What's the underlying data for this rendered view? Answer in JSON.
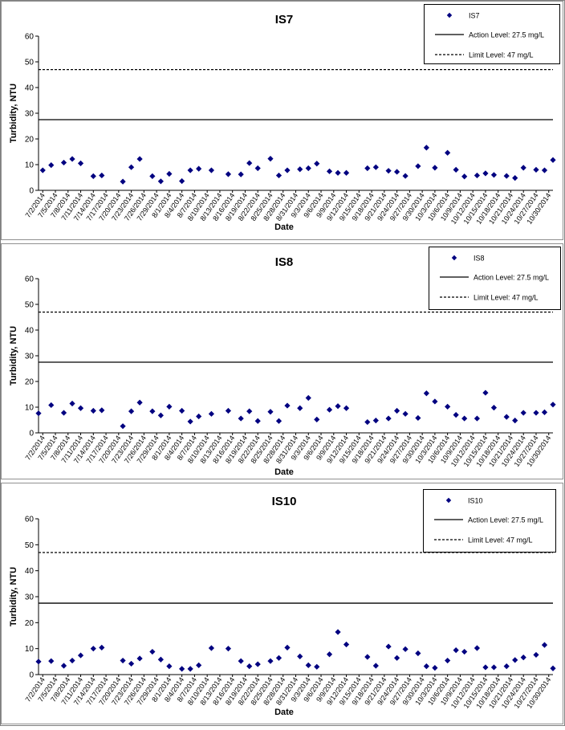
{
  "chart_data": [
    {
      "type": "scatter",
      "title": "IS7",
      "xlabel": "Date",
      "ylabel": "Turbidity, NTU",
      "ylim": [
        0,
        60
      ],
      "y_ticks": [
        0,
        10,
        20,
        30,
        40,
        50,
        60
      ],
      "x_range": [
        "7/1/2014",
        "10/31/2014"
      ],
      "x_tick_labels": [
        "7/2/2014",
        "7/5/2014",
        "7/8/2014",
        "7/11/2014",
        "7/14/2014",
        "7/17/2014",
        "7/20/2014",
        "7/23/2014",
        "7/26/2014",
        "7/29/2014",
        "8/1/2014",
        "8/4/2014",
        "8/7/2014",
        "8/10/2014",
        "8/13/2014",
        "8/16/2014",
        "8/19/2014",
        "8/22/2014",
        "8/25/2014",
        "8/28/2014",
        "8/31/2014",
        "9/3/2014",
        "9/6/2014",
        "9/9/2014",
        "9/12/2014",
        "9/15/2014",
        "9/18/2014",
        "9/21/2014",
        "9/24/2014",
        "9/27/2014",
        "9/30/2014",
        "10/3/2014",
        "10/6/2014",
        "10/9/2014",
        "10/12/2014",
        "10/15/2014",
        "10/18/2014",
        "10/21/2014",
        "10/24/2014",
        "10/27/2014",
        "10/30/2014"
      ],
      "grid": false,
      "legend_position": "top-right",
      "series": [
        {
          "name": "IS7",
          "marker": "diamond",
          "color": "#000080",
          "points": [
            {
              "x": "7/2/2014",
              "y": 7.8
            },
            {
              "x": "7/4/2014",
              "y": 9.8
            },
            {
              "x": "7/7/2014",
              "y": 10.8
            },
            {
              "x": "7/9/2014",
              "y": 12.2
            },
            {
              "x": "7/11/2014",
              "y": 10.5
            },
            {
              "x": "7/14/2014",
              "y": 5.5
            },
            {
              "x": "7/16/2014",
              "y": 5.8
            },
            {
              "x": "7/21/2014",
              "y": 3.4
            },
            {
              "x": "7/23/2014",
              "y": 9.0
            },
            {
              "x": "7/25/2014",
              "y": 12.2
            },
            {
              "x": "7/28/2014",
              "y": 5.5
            },
            {
              "x": "7/30/2014",
              "y": 3.5
            },
            {
              "x": "8/1/2014",
              "y": 6.4
            },
            {
              "x": "8/4/2014",
              "y": 3.6
            },
            {
              "x": "8/6/2014",
              "y": 7.8
            },
            {
              "x": "8/8/2014",
              "y": 8.4
            },
            {
              "x": "8/11/2014",
              "y": 7.8
            },
            {
              "x": "8/15/2014",
              "y": 6.3
            },
            {
              "x": "8/18/2014",
              "y": 6.2
            },
            {
              "x": "8/20/2014",
              "y": 10.6
            },
            {
              "x": "8/22/2014",
              "y": 8.6
            },
            {
              "x": "8/25/2014",
              "y": 12.3
            },
            {
              "x": "8/27/2014",
              "y": 5.8
            },
            {
              "x": "8/29/2014",
              "y": 7.8
            },
            {
              "x": "9/1/2014",
              "y": 8.2
            },
            {
              "x": "9/3/2014",
              "y": 8.6
            },
            {
              "x": "9/5/2014",
              "y": 10.4
            },
            {
              "x": "9/8/2014",
              "y": 7.4
            },
            {
              "x": "9/10/2014",
              "y": 6.8
            },
            {
              "x": "9/12/2014",
              "y": 6.8
            },
            {
              "x": "9/17/2014",
              "y": 8.6
            },
            {
              "x": "9/19/2014",
              "y": 9.0
            },
            {
              "x": "9/22/2014",
              "y": 7.6
            },
            {
              "x": "9/24/2014",
              "y": 7.2
            },
            {
              "x": "9/26/2014",
              "y": 5.6
            },
            {
              "x": "9/29/2014",
              "y": 9.4
            },
            {
              "x": "10/1/2014",
              "y": 16.6
            },
            {
              "x": "10/3/2014",
              "y": 8.8
            },
            {
              "x": "10/6/2014",
              "y": 14.6
            },
            {
              "x": "10/8/2014",
              "y": 8.0
            },
            {
              "x": "10/10/2014",
              "y": 5.4
            },
            {
              "x": "10/13/2014",
              "y": 5.8
            },
            {
              "x": "10/15/2014",
              "y": 6.6
            },
            {
              "x": "10/17/2014",
              "y": 6.0
            },
            {
              "x": "10/20/2014",
              "y": 5.6
            },
            {
              "x": "10/22/2014",
              "y": 4.8
            },
            {
              "x": "10/24/2014",
              "y": 8.8
            },
            {
              "x": "10/27/2014",
              "y": 8.0
            },
            {
              "x": "10/29/2014",
              "y": 7.8
            },
            {
              "x": "10/31/2014",
              "y": 11.8
            }
          ]
        },
        {
          "name": "Action Level: 27.5 mg/L",
          "type": "hline",
          "y": 27.5,
          "line_style": "solid",
          "color": "#000000"
        },
        {
          "name": "Limit Level: 47 mg/L",
          "type": "hline",
          "y": 47,
          "line_style": "dashed",
          "color": "#000000"
        }
      ]
    },
    {
      "type": "scatter",
      "title": "IS8",
      "xlabel": "Date",
      "ylabel": "Turbidity, NTU",
      "ylim": [
        0,
        60
      ],
      "y_ticks": [
        0,
        10,
        20,
        30,
        40,
        50,
        60
      ],
      "x_range": [
        "7/1/2014",
        "10/31/2014"
      ],
      "x_tick_labels": [
        "7/2/2014",
        "7/5/2014",
        "7/8/2014",
        "7/11/2014",
        "7/14/2014",
        "7/17/2014",
        "7/20/2014",
        "7/23/2014",
        "7/26/2014",
        "7/29/2014",
        "8/1/2014",
        "8/4/2014",
        "8/7/2014",
        "8/10/2014",
        "8/13/2014",
        "8/16/2014",
        "8/19/2014",
        "8/22/2014",
        "8/25/2014",
        "8/28/2014",
        "8/31/2014",
        "9/3/2014",
        "9/6/2014",
        "9/9/2014",
        "9/12/2014",
        "9/15/2014",
        "9/18/2014",
        "9/21/2014",
        "9/24/2014",
        "9/27/2014",
        "9/30/2014",
        "10/3/2014",
        "10/6/2014",
        "10/9/2014",
        "10/12/2014",
        "10/15/2014",
        "10/18/2014",
        "10/21/2014",
        "10/24/2014",
        "10/27/2014",
        "10/30/2014"
      ],
      "grid": false,
      "legend_position": "top-right",
      "series": [
        {
          "name": "IS8",
          "marker": "diamond",
          "color": "#000080",
          "points": [
            {
              "x": "7/1/2014",
              "y": 7.6
            },
            {
              "x": "7/4/2014",
              "y": 10.8
            },
            {
              "x": "7/7/2014",
              "y": 7.8
            },
            {
              "x": "7/9/2014",
              "y": 11.4
            },
            {
              "x": "7/11/2014",
              "y": 9.6
            },
            {
              "x": "7/14/2014",
              "y": 8.6
            },
            {
              "x": "7/16/2014",
              "y": 8.8
            },
            {
              "x": "7/21/2014",
              "y": 2.6
            },
            {
              "x": "7/23/2014",
              "y": 8.4
            },
            {
              "x": "7/25/2014",
              "y": 11.8
            },
            {
              "x": "7/28/2014",
              "y": 8.4
            },
            {
              "x": "7/30/2014",
              "y": 6.8
            },
            {
              "x": "8/1/2014",
              "y": 10.2
            },
            {
              "x": "8/4/2014",
              "y": 8.6
            },
            {
              "x": "8/6/2014",
              "y": 4.4
            },
            {
              "x": "8/8/2014",
              "y": 6.4
            },
            {
              "x": "8/11/2014",
              "y": 7.4
            },
            {
              "x": "8/15/2014",
              "y": 8.6
            },
            {
              "x": "8/18/2014",
              "y": 5.6
            },
            {
              "x": "8/20/2014",
              "y": 8.4
            },
            {
              "x": "8/22/2014",
              "y": 4.6
            },
            {
              "x": "8/25/2014",
              "y": 8.2
            },
            {
              "x": "8/27/2014",
              "y": 4.6
            },
            {
              "x": "8/29/2014",
              "y": 10.6
            },
            {
              "x": "9/1/2014",
              "y": 9.6
            },
            {
              "x": "9/3/2014",
              "y": 13.6
            },
            {
              "x": "9/5/2014",
              "y": 5.2
            },
            {
              "x": "9/8/2014",
              "y": 9.0
            },
            {
              "x": "9/10/2014",
              "y": 10.4
            },
            {
              "x": "9/12/2014",
              "y": 9.6
            },
            {
              "x": "9/17/2014",
              "y": 4.2
            },
            {
              "x": "9/19/2014",
              "y": 4.8
            },
            {
              "x": "9/22/2014",
              "y": 5.6
            },
            {
              "x": "9/24/2014",
              "y": 8.6
            },
            {
              "x": "9/26/2014",
              "y": 7.4
            },
            {
              "x": "9/29/2014",
              "y": 5.8
            },
            {
              "x": "10/1/2014",
              "y": 15.4
            },
            {
              "x": "10/3/2014",
              "y": 12.2
            },
            {
              "x": "10/6/2014",
              "y": 10.2
            },
            {
              "x": "10/8/2014",
              "y": 7.0
            },
            {
              "x": "10/10/2014",
              "y": 5.6
            },
            {
              "x": "10/13/2014",
              "y": 5.6
            },
            {
              "x": "10/15/2014",
              "y": 15.6
            },
            {
              "x": "10/17/2014",
              "y": 9.8
            },
            {
              "x": "10/20/2014",
              "y": 6.2
            },
            {
              "x": "10/22/2014",
              "y": 4.8
            },
            {
              "x": "10/24/2014",
              "y": 7.8
            },
            {
              "x": "10/27/2014",
              "y": 7.8
            },
            {
              "x": "10/29/2014",
              "y": 8.0
            },
            {
              "x": "10/31/2014",
              "y": 11.0
            }
          ]
        },
        {
          "name": "Action Level: 27.5 mg/L",
          "type": "hline",
          "y": 27.5,
          "line_style": "solid",
          "color": "#000000"
        },
        {
          "name": "Limit Level: 47 mg/L",
          "type": "hline",
          "y": 47,
          "line_style": "dashed",
          "color": "#000000"
        }
      ]
    },
    {
      "type": "scatter",
      "title": "IS10",
      "xlabel": "Date",
      "ylabel": "Turbidity, NTU",
      "ylim": [
        0,
        60
      ],
      "y_ticks": [
        0,
        10,
        20,
        30,
        40,
        50,
        60
      ],
      "x_range": [
        "7/1/2014",
        "10/31/2014"
      ],
      "x_tick_labels": [
        "7/2/2014",
        "7/5/2014",
        "7/8/2014",
        "7/11/2014",
        "7/14/2014",
        "7/17/2014",
        "7/20/2014",
        "7/23/2014",
        "7/26/2014",
        "7/29/2014",
        "8/1/2014",
        "8/4/2014",
        "8/7/2014",
        "8/10/2014",
        "8/13/2014",
        "8/16/2014",
        "8/19/2014",
        "8/22/2014",
        "8/25/2014",
        "8/28/2014",
        "8/31/2014",
        "9/3/2014",
        "9/6/2014",
        "9/9/2014",
        "9/12/2014",
        "9/15/2014",
        "9/18/2014",
        "9/21/2014",
        "9/24/2014",
        "9/27/2014",
        "9/30/2014",
        "10/3/2014",
        "10/6/2014",
        "10/9/2014",
        "10/12/2014",
        "10/15/2014",
        "10/18/2014",
        "10/21/2014",
        "10/24/2014",
        "10/27/2014",
        "10/30/2014"
      ],
      "grid": false,
      "legend_position": "top-right",
      "series": [
        {
          "name": "IS10",
          "marker": "diamond",
          "color": "#000080",
          "points": [
            {
              "x": "7/1/2014",
              "y": 5.0
            },
            {
              "x": "7/4/2014",
              "y": 5.2
            },
            {
              "x": "7/7/2014",
              "y": 3.4
            },
            {
              "x": "7/9/2014",
              "y": 5.4
            },
            {
              "x": "7/11/2014",
              "y": 7.4
            },
            {
              "x": "7/14/2014",
              "y": 10.0
            },
            {
              "x": "7/16/2014",
              "y": 10.4
            },
            {
              "x": "7/21/2014",
              "y": 5.4
            },
            {
              "x": "7/23/2014",
              "y": 4.2
            },
            {
              "x": "7/25/2014",
              "y": 6.2
            },
            {
              "x": "7/28/2014",
              "y": 8.8
            },
            {
              "x": "7/30/2014",
              "y": 5.8
            },
            {
              "x": "8/1/2014",
              "y": 3.2
            },
            {
              "x": "8/4/2014",
              "y": 2.2
            },
            {
              "x": "8/6/2014",
              "y": 2.2
            },
            {
              "x": "8/8/2014",
              "y": 3.6
            },
            {
              "x": "8/11/2014",
              "y": 10.2
            },
            {
              "x": "8/15/2014",
              "y": 10.0
            },
            {
              "x": "8/18/2014",
              "y": 5.2
            },
            {
              "x": "8/20/2014",
              "y": 3.2
            },
            {
              "x": "8/22/2014",
              "y": 4.0
            },
            {
              "x": "8/25/2014",
              "y": 5.2
            },
            {
              "x": "8/27/2014",
              "y": 6.4
            },
            {
              "x": "8/29/2014",
              "y": 10.4
            },
            {
              "x": "9/1/2014",
              "y": 7.0
            },
            {
              "x": "9/3/2014",
              "y": 3.6
            },
            {
              "x": "9/5/2014",
              "y": 3.0
            },
            {
              "x": "9/8/2014",
              "y": 7.8
            },
            {
              "x": "9/10/2014",
              "y": 16.4
            },
            {
              "x": "9/12/2014",
              "y": 11.6
            },
            {
              "x": "9/17/2014",
              "y": 6.8
            },
            {
              "x": "9/19/2014",
              "y": 3.4
            },
            {
              "x": "9/22/2014",
              "y": 10.8
            },
            {
              "x": "9/24/2014",
              "y": 6.4
            },
            {
              "x": "9/26/2014",
              "y": 9.8
            },
            {
              "x": "9/29/2014",
              "y": 8.2
            },
            {
              "x": "10/1/2014",
              "y": 3.2
            },
            {
              "x": "10/3/2014",
              "y": 2.6
            },
            {
              "x": "10/6/2014",
              "y": 5.4
            },
            {
              "x": "10/8/2014",
              "y": 9.4
            },
            {
              "x": "10/10/2014",
              "y": 8.8
            },
            {
              "x": "10/13/2014",
              "y": 10.2
            },
            {
              "x": "10/15/2014",
              "y": 2.8
            },
            {
              "x": "10/17/2014",
              "y": 2.8
            },
            {
              "x": "10/20/2014",
              "y": 3.2
            },
            {
              "x": "10/22/2014",
              "y": 5.6
            },
            {
              "x": "10/24/2014",
              "y": 6.6
            },
            {
              "x": "10/27/2014",
              "y": 7.6
            },
            {
              "x": "10/29/2014",
              "y": 11.4
            },
            {
              "x": "10/31/2014",
              "y": 2.4
            }
          ]
        },
        {
          "name": "Action Level: 27.5 mg/L",
          "type": "hline",
          "y": 27.5,
          "line_style": "solid",
          "color": "#000000"
        },
        {
          "name": "Limit Level: 47 mg/L",
          "type": "hline",
          "y": 47,
          "line_style": "dashed",
          "color": "#000000"
        }
      ]
    }
  ]
}
